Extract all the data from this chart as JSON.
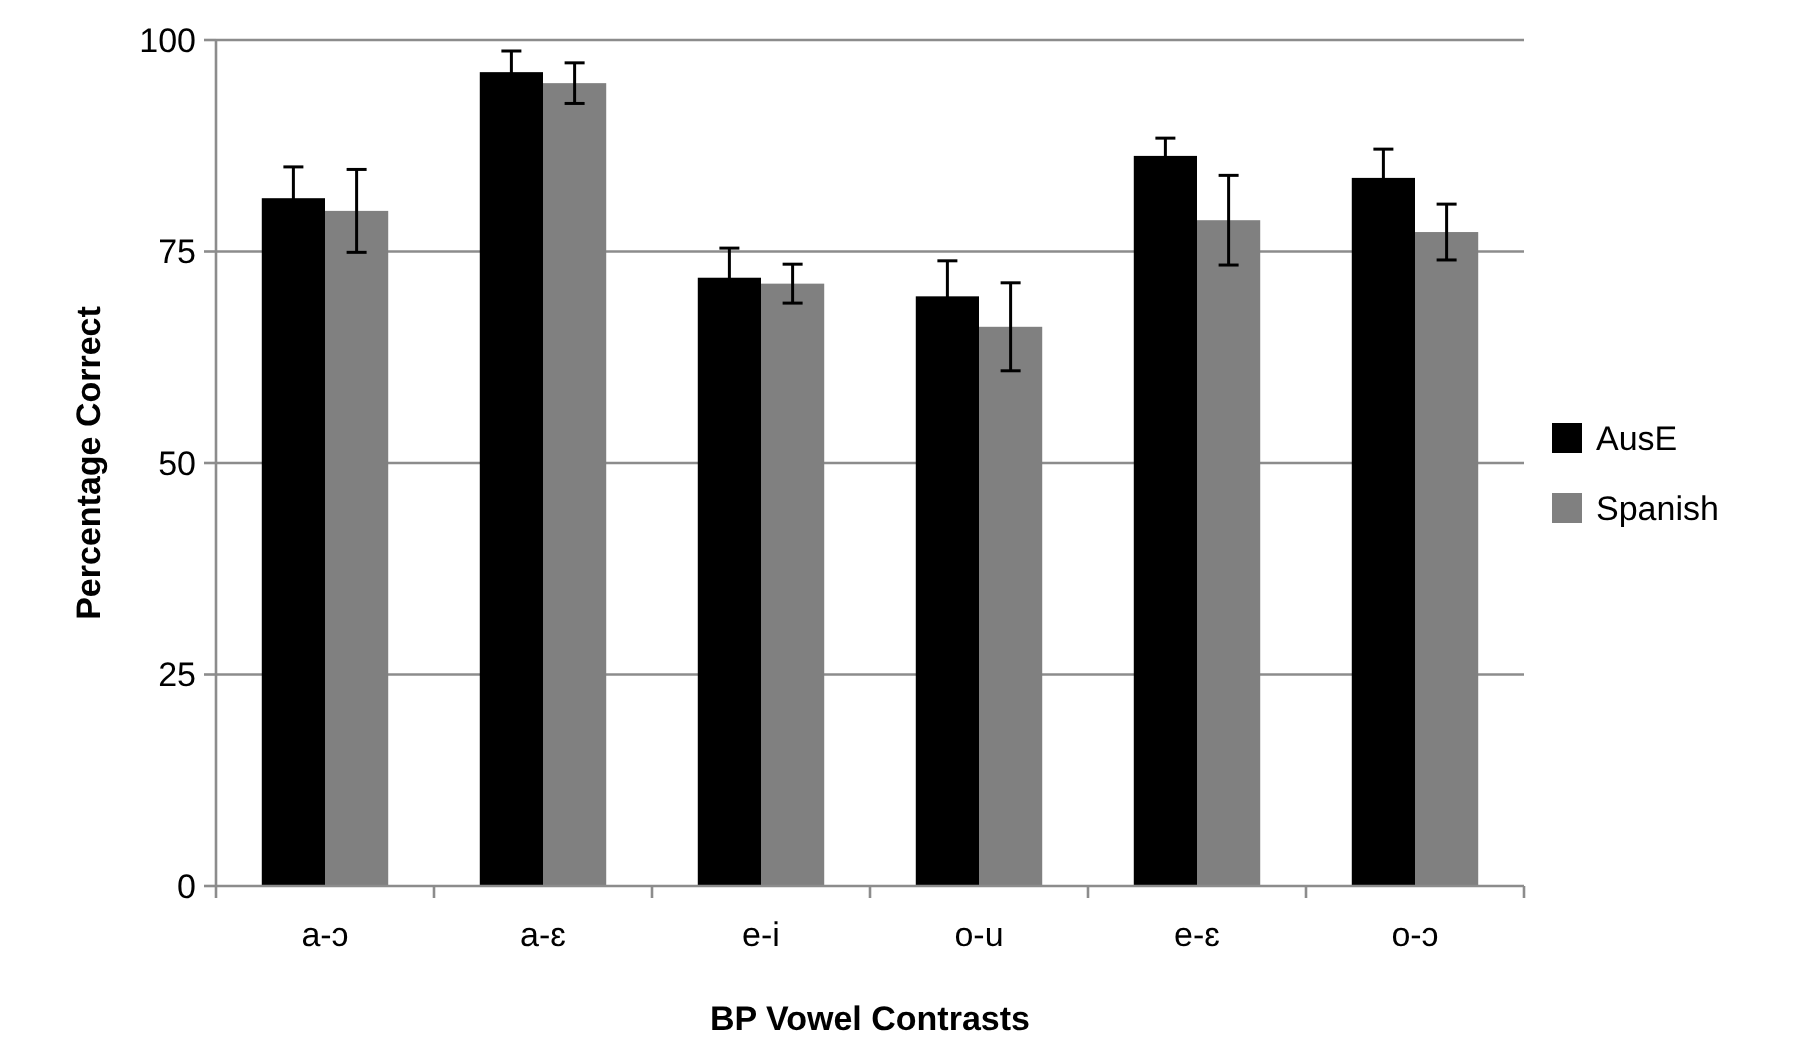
{
  "chart_data": {
    "type": "bar",
    "xlabel": "BP Vowel Contrasts",
    "ylabel": "Percentage Correct",
    "categories": [
      "a-ɔ",
      "a-ɛ",
      "e-i",
      "o-u",
      "e-ɛ",
      "o-ɔ"
    ],
    "series": [
      {
        "name": "AusE",
        "color": "#000000",
        "values": [
          81.3,
          96.2,
          71.9,
          69.7,
          86.3,
          83.7
        ],
        "errors": [
          3.7,
          2.5,
          3.5,
          4.2,
          2.1,
          3.4
        ]
      },
      {
        "name": "Spanish",
        "color": "#808080",
        "values": [
          79.8,
          94.9,
          71.2,
          66.1,
          78.7,
          77.3
        ],
        "errors": [
          4.9,
          2.4,
          2.3,
          5.2,
          5.3,
          3.3
        ]
      }
    ],
    "ylim": [
      0,
      100
    ],
    "yticks": [
      0,
      25,
      50,
      75,
      100
    ],
    "grid": "y",
    "legend": "right"
  }
}
